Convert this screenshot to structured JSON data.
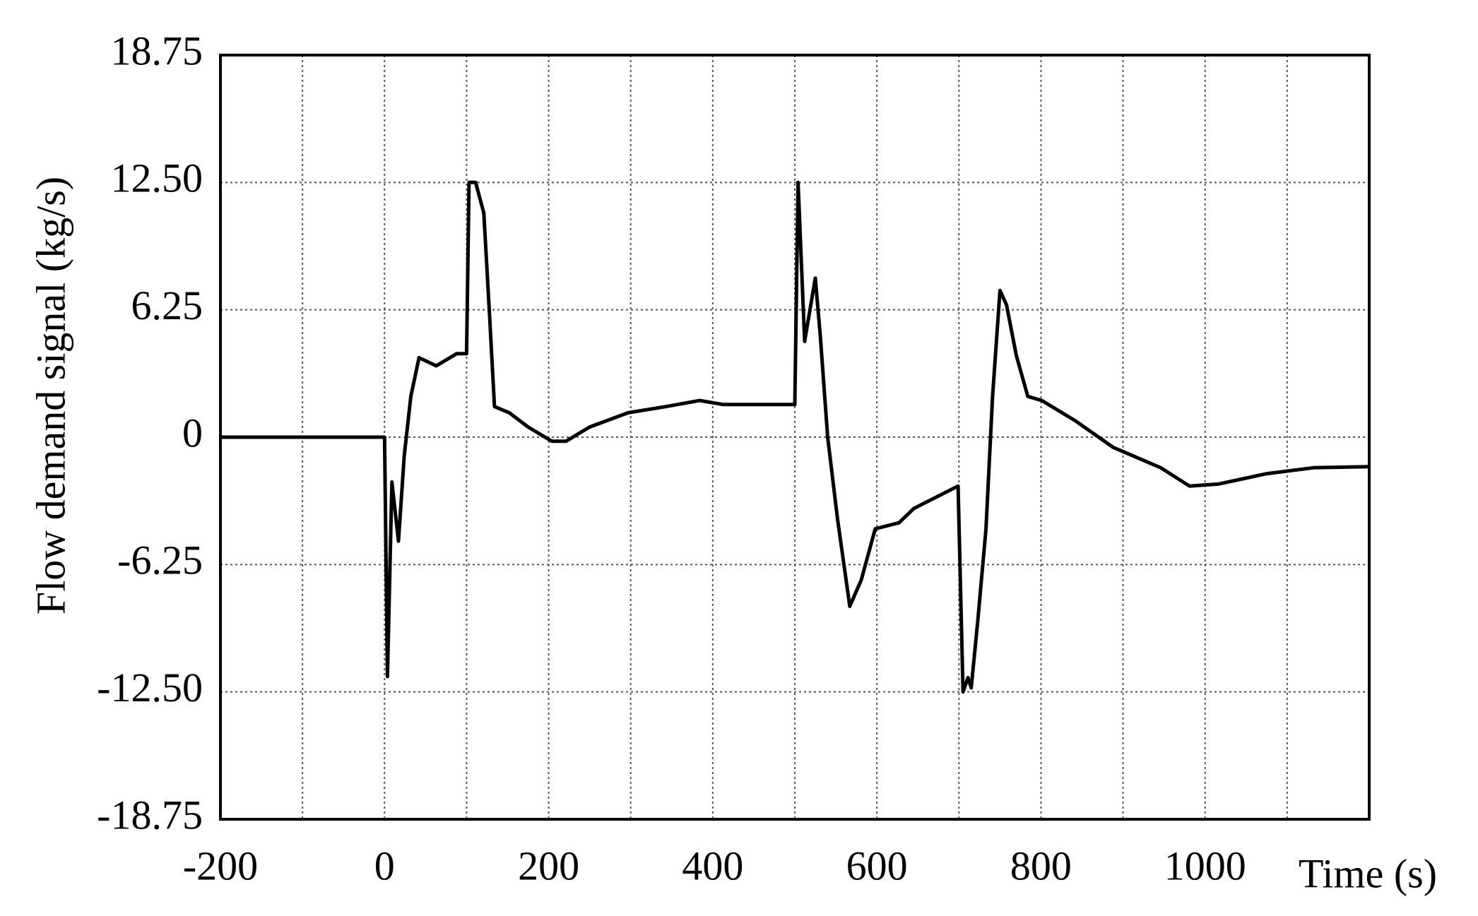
{
  "chart_data": {
    "type": "line",
    "y_label": "Flow demand signal (kg/s)",
    "x_label": "Time (s)",
    "color": "#000000",
    "x": [
      -200,
      0,
      3.5,
      9,
      17,
      24,
      32,
      42,
      63,
      88,
      100,
      103,
      111,
      121,
      128,
      134,
      152,
      175,
      204,
      221,
      250,
      297,
      343,
      384,
      413,
      500,
      504,
      512,
      525,
      531,
      540,
      552,
      567,
      581,
      598,
      627,
      645,
      699,
      705,
      711,
      715,
      723,
      733,
      741,
      750,
      758,
      770,
      784,
      801,
      842,
      888,
      946,
      981,
      1016,
      1074,
      1132,
      1200
    ],
    "values": [
      0,
      0,
      -11.75,
      -2.2,
      -5.1,
      -0.9,
      2,
      3.9,
      3.5,
      4.1,
      4.1,
      12.5,
      12.5,
      11,
      6,
      1.5,
      1.2,
      0.5,
      -0.2,
      -0.2,
      0.5,
      1.2,
      1.5,
      1.8,
      1.6,
      1.6,
      12.5,
      4.7,
      7.8,
      5,
      0,
      -4,
      -8.3,
      -7,
      -4.5,
      -4.2,
      -3.5,
      -2.4,
      -12.5,
      -11.8,
      -12.3,
      -9,
      -4.5,
      2,
      7.2,
      6.5,
      4,
      2,
      1.8,
      0.8,
      -0.5,
      -1.5,
      -2.4,
      -2.3,
      -1.8,
      -1.5,
      -1.45
    ],
    "xlim": [
      -200,
      1200
    ],
    "ylim": [
      -18.75,
      18.75
    ],
    "xticks": [
      -200,
      0,
      200,
      400,
      600,
      800,
      1000
    ],
    "x_minor_grid": [
      -100,
      100,
      300,
      500,
      700,
      900,
      1100
    ],
    "yticks": [
      -18.75,
      {
        "value": -12.5,
        "label": "-12.50"
      },
      -6.25,
      0,
      6.25,
      {
        "value": 12.5,
        "label": "12.50"
      },
      18.75
    ],
    "grid": true
  }
}
